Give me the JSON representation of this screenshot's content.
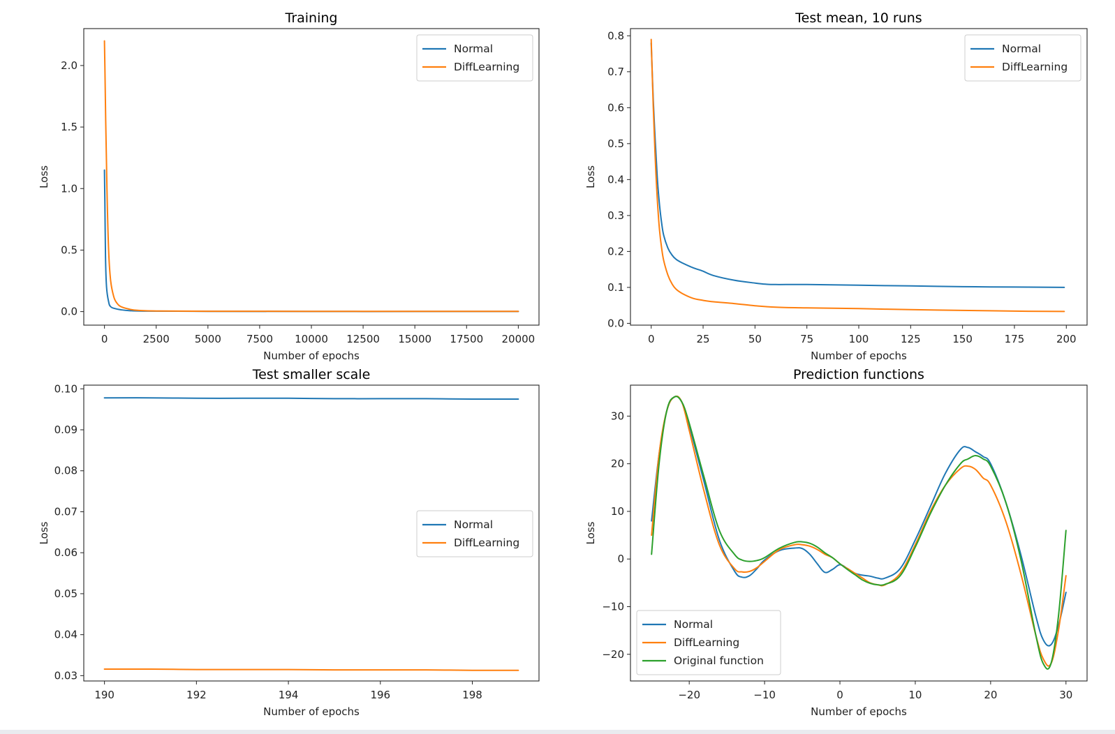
{
  "colors": {
    "normal": "#1f77b4",
    "diff": "#ff7f0e",
    "original": "#2ca02c"
  },
  "chart_data": [
    {
      "id": "training",
      "type": "line",
      "title": "Training",
      "xlabel": "Number of epochs",
      "ylabel": "Loss",
      "xlim": [
        -1000,
        21000
      ],
      "ylim": [
        -0.11,
        2.3
      ],
      "xticks": [
        0,
        2500,
        5000,
        7500,
        10000,
        12500,
        15000,
        17500,
        20000
      ],
      "xtick_labels": [
        "0",
        "2500",
        "5000",
        "7500",
        "10000",
        "12500",
        "15000",
        "17500",
        "20000"
      ],
      "yticks": [
        0.0,
        0.5,
        1.0,
        1.5,
        2.0
      ],
      "ytick_labels": [
        "0.0",
        "0.5",
        "1.0",
        "1.5",
        "2.0"
      ],
      "legend": "upper right",
      "series": [
        {
          "name": "Normal",
          "color": "#1f77b4",
          "x": [
            0,
            20,
            50,
            100,
            200,
            300,
            500,
            800,
            1200,
            2000,
            5000,
            10000,
            15000,
            20000
          ],
          "y": [
            1.15,
            0.9,
            0.45,
            0.2,
            0.08,
            0.04,
            0.025,
            0.015,
            0.008,
            0.004,
            0.002,
            0.001,
            0.001,
            0.001
          ]
        },
        {
          "name": "DiffLearning",
          "color": "#ff7f0e",
          "x": [
            0,
            20,
            60,
            120,
            200,
            300,
            450,
            600,
            800,
            1200,
            1600,
            2500,
            5000,
            10000,
            15000,
            20000
          ],
          "y": [
            2.2,
            2.0,
            1.55,
            1.0,
            0.5,
            0.25,
            0.12,
            0.07,
            0.04,
            0.02,
            0.01,
            0.005,
            0.003,
            0.002,
            0.002,
            0.002
          ]
        }
      ]
    },
    {
      "id": "test-mean",
      "type": "line",
      "title": "Test mean, 10 runs",
      "xlabel": "Number of epochs",
      "ylabel": "Loss",
      "xlim": [
        -10,
        210
      ],
      "ylim": [
        -0.005,
        0.82
      ],
      "xticks": [
        0,
        25,
        50,
        75,
        100,
        125,
        150,
        175,
        200
      ],
      "xtick_labels": [
        "0",
        "25",
        "50",
        "75",
        "100",
        "125",
        "150",
        "175",
        "200"
      ],
      "yticks": [
        0.0,
        0.1,
        0.2,
        0.3,
        0.4,
        0.5,
        0.6,
        0.7,
        0.8
      ],
      "ytick_labels": [
        "0.0",
        "0.1",
        "0.2",
        "0.3",
        "0.4",
        "0.5",
        "0.6",
        "0.7",
        "0.8"
      ],
      "legend": "upper right",
      "series": [
        {
          "name": "Normal",
          "color": "#1f77b4",
          "x": [
            0,
            1,
            2,
            3,
            4,
            5,
            6,
            8,
            10,
            12,
            15,
            20,
            25,
            30,
            40,
            50,
            55,
            60,
            75,
            100,
            125,
            150,
            175,
            199
          ],
          "y": [
            0.78,
            0.62,
            0.5,
            0.4,
            0.33,
            0.28,
            0.245,
            0.21,
            0.19,
            0.178,
            0.168,
            0.155,
            0.145,
            0.133,
            0.12,
            0.112,
            0.109,
            0.108,
            0.108,
            0.106,
            0.104,
            0.102,
            0.101,
            0.1
          ]
        },
        {
          "name": "DiffLearning",
          "color": "#ff7f0e",
          "x": [
            0,
            1,
            2,
            3,
            4,
            5,
            6,
            8,
            10,
            12,
            15,
            20,
            25,
            30,
            40,
            50,
            60,
            75,
            100,
            125,
            150,
            175,
            199
          ],
          "y": [
            0.79,
            0.6,
            0.45,
            0.34,
            0.26,
            0.21,
            0.175,
            0.135,
            0.11,
            0.095,
            0.083,
            0.07,
            0.064,
            0.06,
            0.055,
            0.049,
            0.045,
            0.043,
            0.041,
            0.038,
            0.036,
            0.034,
            0.033
          ]
        }
      ]
    },
    {
      "id": "test-smaller-scale",
      "type": "line",
      "title": "Test smaller scale",
      "xlabel": "Number of epochs",
      "ylabel": "Loss",
      "xlim": [
        189.55,
        199.45
      ],
      "ylim": [
        0.0287,
        0.1009
      ],
      "xticks": [
        190,
        192,
        194,
        196,
        198
      ],
      "xtick_labels": [
        "190",
        "192",
        "194",
        "196",
        "198"
      ],
      "yticks": [
        0.03,
        0.04,
        0.05,
        0.06,
        0.07,
        0.08,
        0.09,
        0.1
      ],
      "ytick_labels": [
        "0.03",
        "0.04",
        "0.05",
        "0.06",
        "0.07",
        "0.08",
        "0.09",
        "0.10"
      ],
      "legend": "center right",
      "series": [
        {
          "name": "Normal",
          "color": "#1f77b4",
          "x": [
            190,
            191,
            192,
            193,
            194,
            195,
            196,
            197,
            198,
            199
          ],
          "y": [
            0.0978,
            0.0978,
            0.0977,
            0.0977,
            0.0977,
            0.0976,
            0.0976,
            0.0976,
            0.0975,
            0.0975
          ]
        },
        {
          "name": "DiffLearning",
          "color": "#ff7f0e",
          "x": [
            190,
            191,
            192,
            193,
            194,
            195,
            196,
            197,
            198,
            199
          ],
          "y": [
            0.0316,
            0.0316,
            0.0315,
            0.0315,
            0.0315,
            0.0314,
            0.0314,
            0.0314,
            0.0313,
            0.0313
          ]
        }
      ]
    },
    {
      "id": "prediction-functions",
      "type": "line",
      "title": "Prediction functions",
      "xlabel": "Number of epochs",
      "ylabel": "Loss",
      "xlim": [
        -27.8,
        32.8
      ],
      "ylim": [
        -25.6,
        36.5
      ],
      "xticks": [
        -20,
        -10,
        0,
        10,
        20,
        30
      ],
      "xtick_labels": [
        "−20",
        "−10",
        "0",
        "10",
        "20",
        "30"
      ],
      "yticks": [
        -20,
        -10,
        0,
        10,
        20,
        30
      ],
      "ytick_labels": [
        "−20",
        "−10",
        "0",
        "10",
        "20",
        "30"
      ],
      "legend": "lower left",
      "series": [
        {
          "name": "Normal",
          "color": "#1f77b4",
          "x": [
            -25,
            -24,
            -23,
            -22,
            -21,
            -20,
            -18,
            -16,
            -14,
            -13,
            -12,
            -11,
            -10,
            -8,
            -6,
            -5,
            -4,
            -3,
            -2,
            -1,
            0,
            1,
            2,
            3,
            4,
            5,
            6,
            8,
            10,
            12,
            14,
            16,
            17,
            18,
            19,
            20,
            22,
            24,
            26,
            27,
            28,
            29,
            30
          ],
          "y": [
            8,
            22,
            31,
            34,
            33,
            28,
            16,
            4,
            -2.5,
            -3.8,
            -3.5,
            -2,
            -0.2,
            1.8,
            2.3,
            2.2,
            1,
            -1,
            -2.8,
            -2.2,
            -1.2,
            -2,
            -3,
            -3.4,
            -3.6,
            -4,
            -4,
            -2,
            4,
            11,
            18,
            23,
            23.4,
            22.5,
            21.5,
            20,
            12,
            1,
            -12,
            -17,
            -18,
            -14,
            -7
          ]
        },
        {
          "name": "DiffLearning",
          "color": "#ff7f0e",
          "x": [
            -25,
            -24,
            -23,
            -22,
            -21,
            -20,
            -18,
            -16,
            -14,
            -13,
            -12,
            -11,
            -10,
            -8,
            -6,
            -5,
            -4,
            -3,
            -2,
            -1,
            0,
            1,
            2,
            3,
            4,
            5,
            6,
            8,
            10,
            12,
            14,
            16,
            17,
            18,
            19,
            20,
            22,
            24,
            26,
            27,
            28,
            29,
            30
          ],
          "y": [
            5,
            22,
            31,
            34,
            33,
            27,
            14,
            3,
            -2,
            -2.7,
            -2.6,
            -1.8,
            -0.5,
            2,
            3,
            3,
            2.7,
            2,
            1,
            0.3,
            -1,
            -2,
            -3,
            -4,
            -5,
            -5.4,
            -5.4,
            -3,
            3,
            10,
            15.5,
            19,
            19.5,
            18.8,
            17,
            15.5,
            8,
            -3,
            -16,
            -21,
            -22,
            -15,
            -3.5
          ]
        },
        {
          "name": "Original function",
          "color": "#2ca02c",
          "x": [
            -25,
            -24,
            -23,
            -22,
            -21,
            -20,
            -18,
            -16,
            -14,
            -13,
            -12,
            -11,
            -10,
            -8,
            -6,
            -5,
            -4,
            -3,
            -2,
            -1,
            0,
            1,
            2,
            3,
            4,
            5,
            6,
            8,
            10,
            12,
            14,
            16,
            17,
            18,
            19,
            20,
            22,
            24,
            26,
            27,
            28,
            29,
            30
          ],
          "y": [
            1,
            20,
            31,
            34,
            33,
            28.5,
            17,
            6,
            1,
            -0.2,
            -0.5,
            -0.3,
            0.3,
            2.3,
            3.5,
            3.6,
            3.3,
            2.5,
            1.3,
            0.3,
            -1,
            -2.2,
            -3.3,
            -4.4,
            -5.1,
            -5.4,
            -5.3,
            -3.5,
            2.5,
            9.5,
            15.5,
            20,
            21,
            21.7,
            21,
            19.5,
            12,
            0,
            -16,
            -22,
            -22,
            -12,
            6
          ]
        }
      ]
    }
  ]
}
